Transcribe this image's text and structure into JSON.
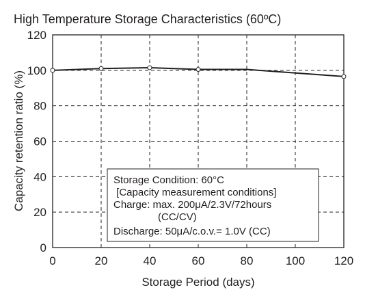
{
  "chart_data": {
    "type": "line",
    "title": "High Temperature Storage Characteristics (60ºC)",
    "xlabel": "Storage Period (days)",
    "ylabel": "Capacity retention ratio (%)",
    "xlim": [
      0,
      120
    ],
    "ylim": [
      0,
      120
    ],
    "x_ticks": [
      0,
      20,
      40,
      60,
      80,
      100,
      120
    ],
    "y_ticks": [
      0,
      20,
      40,
      60,
      80,
      100,
      120
    ],
    "grid": true,
    "grid_style": "dashed",
    "series": [
      {
        "x": [
          0,
          20,
          40,
          60,
          80,
          120
        ],
        "y": [
          100,
          101,
          101.5,
          100.5,
          100.5,
          96.5
        ],
        "markers": [
          0,
          20,
          40,
          60,
          120
        ],
        "color": "#231f20"
      }
    ],
    "annotation": {
      "lines": [
        "Storage Condition: 60°C",
        " [Capacity measurement conditions]",
        "Charge: max. 200μA/2.3V/72hours",
        "(CC/CV)",
        "Discharge: 50μA/c.o.v.= 1.0V (CC)"
      ]
    }
  }
}
